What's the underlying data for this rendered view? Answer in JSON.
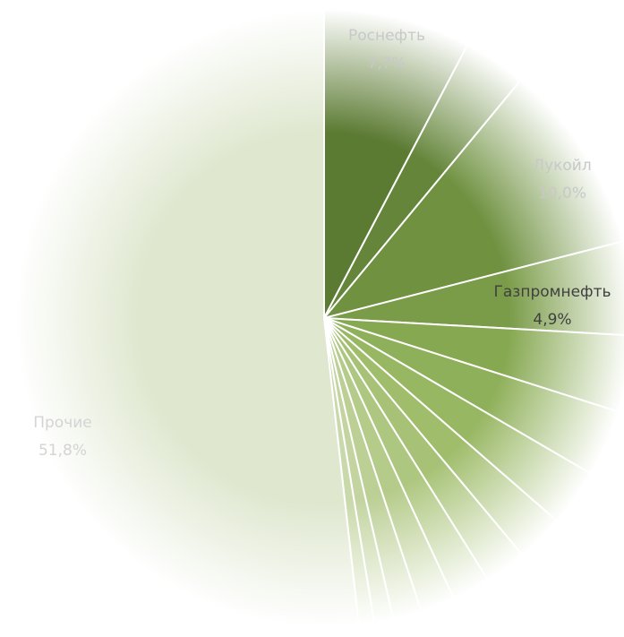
{
  "chart_data": {
    "type": "pie",
    "categories": [
      "Роснефть",
      null,
      "Лукойл",
      "Газпромнефть",
      null,
      null,
      null,
      null,
      null,
      null,
      null,
      null,
      null,
      null,
      "Прочие"
    ],
    "values": [
      7.7,
      3.3,
      10.0,
      4.9,
      4.0,
      3.5,
      3.0,
      2.5,
      2.2,
      2.0,
      1.8,
      1.5,
      1.0,
      0.8,
      51.8
    ],
    "value_labels": [
      "7,7%",
      null,
      "10,0%",
      "4,9%",
      null,
      null,
      null,
      null,
      null,
      null,
      null,
      null,
      null,
      null,
      "51,8%"
    ],
    "colors": [
      "#5b7a32",
      "#64853a",
      "#6f9140",
      "#7a9c48",
      "#86a851",
      "#8fb05a",
      "#98b763",
      "#a0bd6c",
      "#a7c276",
      "#aec780",
      "#b5cb8a",
      "#bccf95",
      "#c3d4a0",
      "#cad9ab",
      "#dfe7cf"
    ]
  }
}
